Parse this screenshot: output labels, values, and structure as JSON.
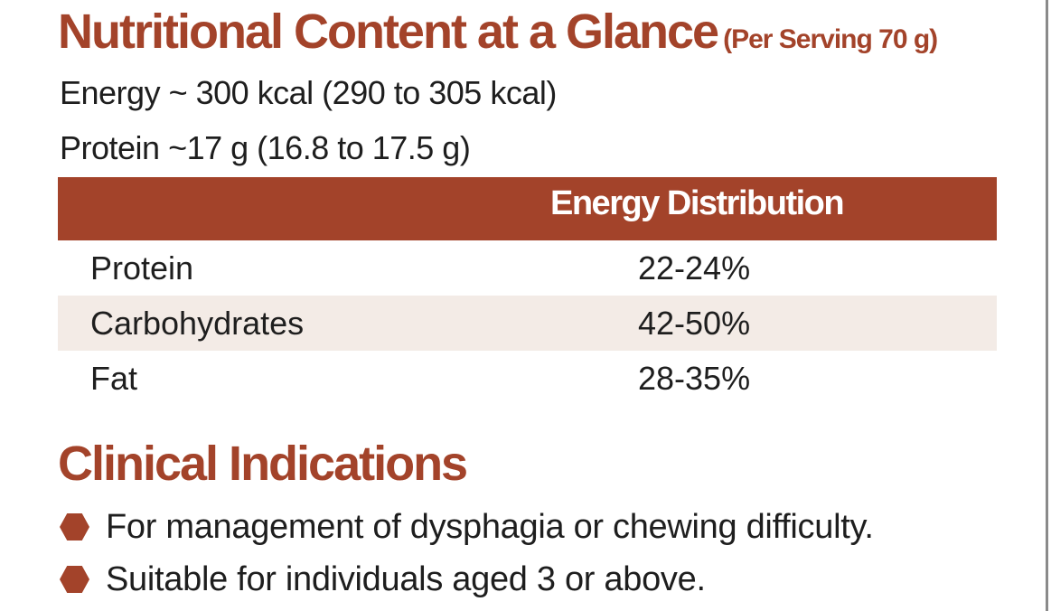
{
  "title": {
    "main": "Nutritional Content at a Glance",
    "sub": "(Per Serving 70 g)"
  },
  "energy_line": "Energy ~ 300 kcal (290 to 305 kcal)",
  "protein_line": "Protein ~17 g (16.8 to 17.5 g)",
  "table": {
    "header": "Energy Distribution",
    "rows": [
      {
        "name": "Protein",
        "value": "22-24%"
      },
      {
        "name": "Carbohydrates",
        "value": "42-50%"
      },
      {
        "name": "Fat",
        "value": "28-35%"
      }
    ]
  },
  "clinical": {
    "title": "Clinical Indications",
    "items": [
      {
        "icon": "hexagon-bullet-icon",
        "text": "For management of dysphagia or chewing difficulty."
      },
      {
        "icon": "hexagon-bullet-icon",
        "text": "Suitable for individuals aged 3 or above."
      }
    ]
  },
  "colors": {
    "accent": "#a3432a",
    "row_shade": "#f3ebe6",
    "text": "#1e1e1e"
  }
}
